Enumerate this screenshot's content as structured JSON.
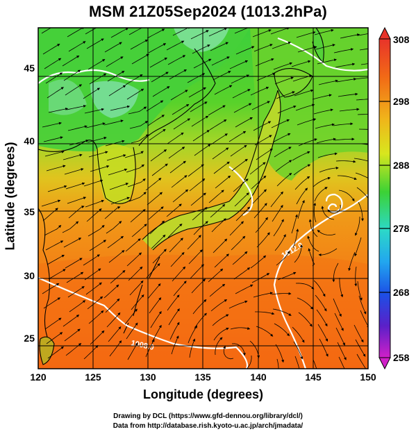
{
  "title": "MSM 21Z05Sep2024 (1013.2hPa)",
  "axes": {
    "xlabel": "Longitude (degrees)",
    "ylabel": "Latitude  (degrees)",
    "xticks": [
      "120",
      "125",
      "130",
      "135",
      "140",
      "145",
      "150"
    ],
    "yticks": [
      "25",
      "30",
      "35",
      "40",
      "45"
    ]
  },
  "colorbar": {
    "ticks": [
      "308",
      "298",
      "288",
      "278",
      "268",
      "258"
    ],
    "min": 258,
    "max": 308
  },
  "isobar_label": "1008.0",
  "credits": {
    "line1": "Drawing by DCL (https://www.gfd-dennou.org/library/dcl/)",
    "line2": "Data from http://database.rish.kyoto-u.ac.jp/arch/jmadata/"
  },
  "colors": {
    "warm": "#f08a1c",
    "mid": "#e6d21e",
    "cool": "#4fd130",
    "ocean_warm": "#f26a12"
  }
}
